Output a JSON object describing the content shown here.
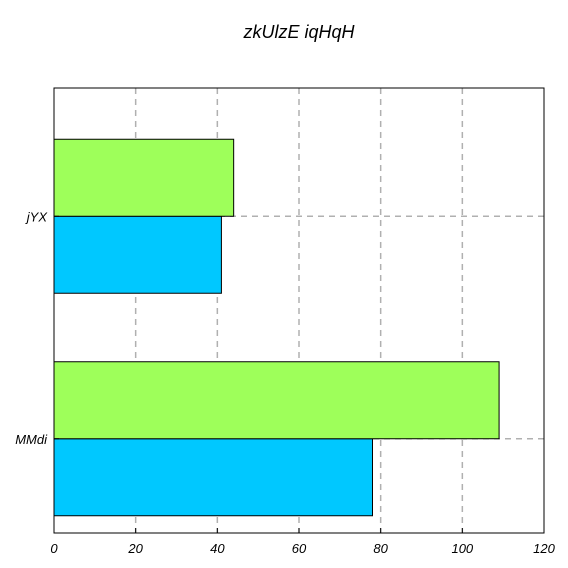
{
  "chart_data": {
    "type": "bar",
    "orientation": "horizontal",
    "title": "zkUlzE  iqHqH",
    "xlabel": "",
    "ylabel": "",
    "categories": [
      "jYX",
      "MMdi"
    ],
    "series": [
      {
        "values": [
          41,
          78
        ],
        "color": "#00c8ff"
      },
      {
        "values": [
          44,
          109
        ],
        "color": "#9eff5a"
      }
    ],
    "xlim": [
      0,
      120
    ],
    "xticks": [
      0,
      20,
      40,
      60,
      80,
      100,
      120
    ],
    "grid": true
  }
}
